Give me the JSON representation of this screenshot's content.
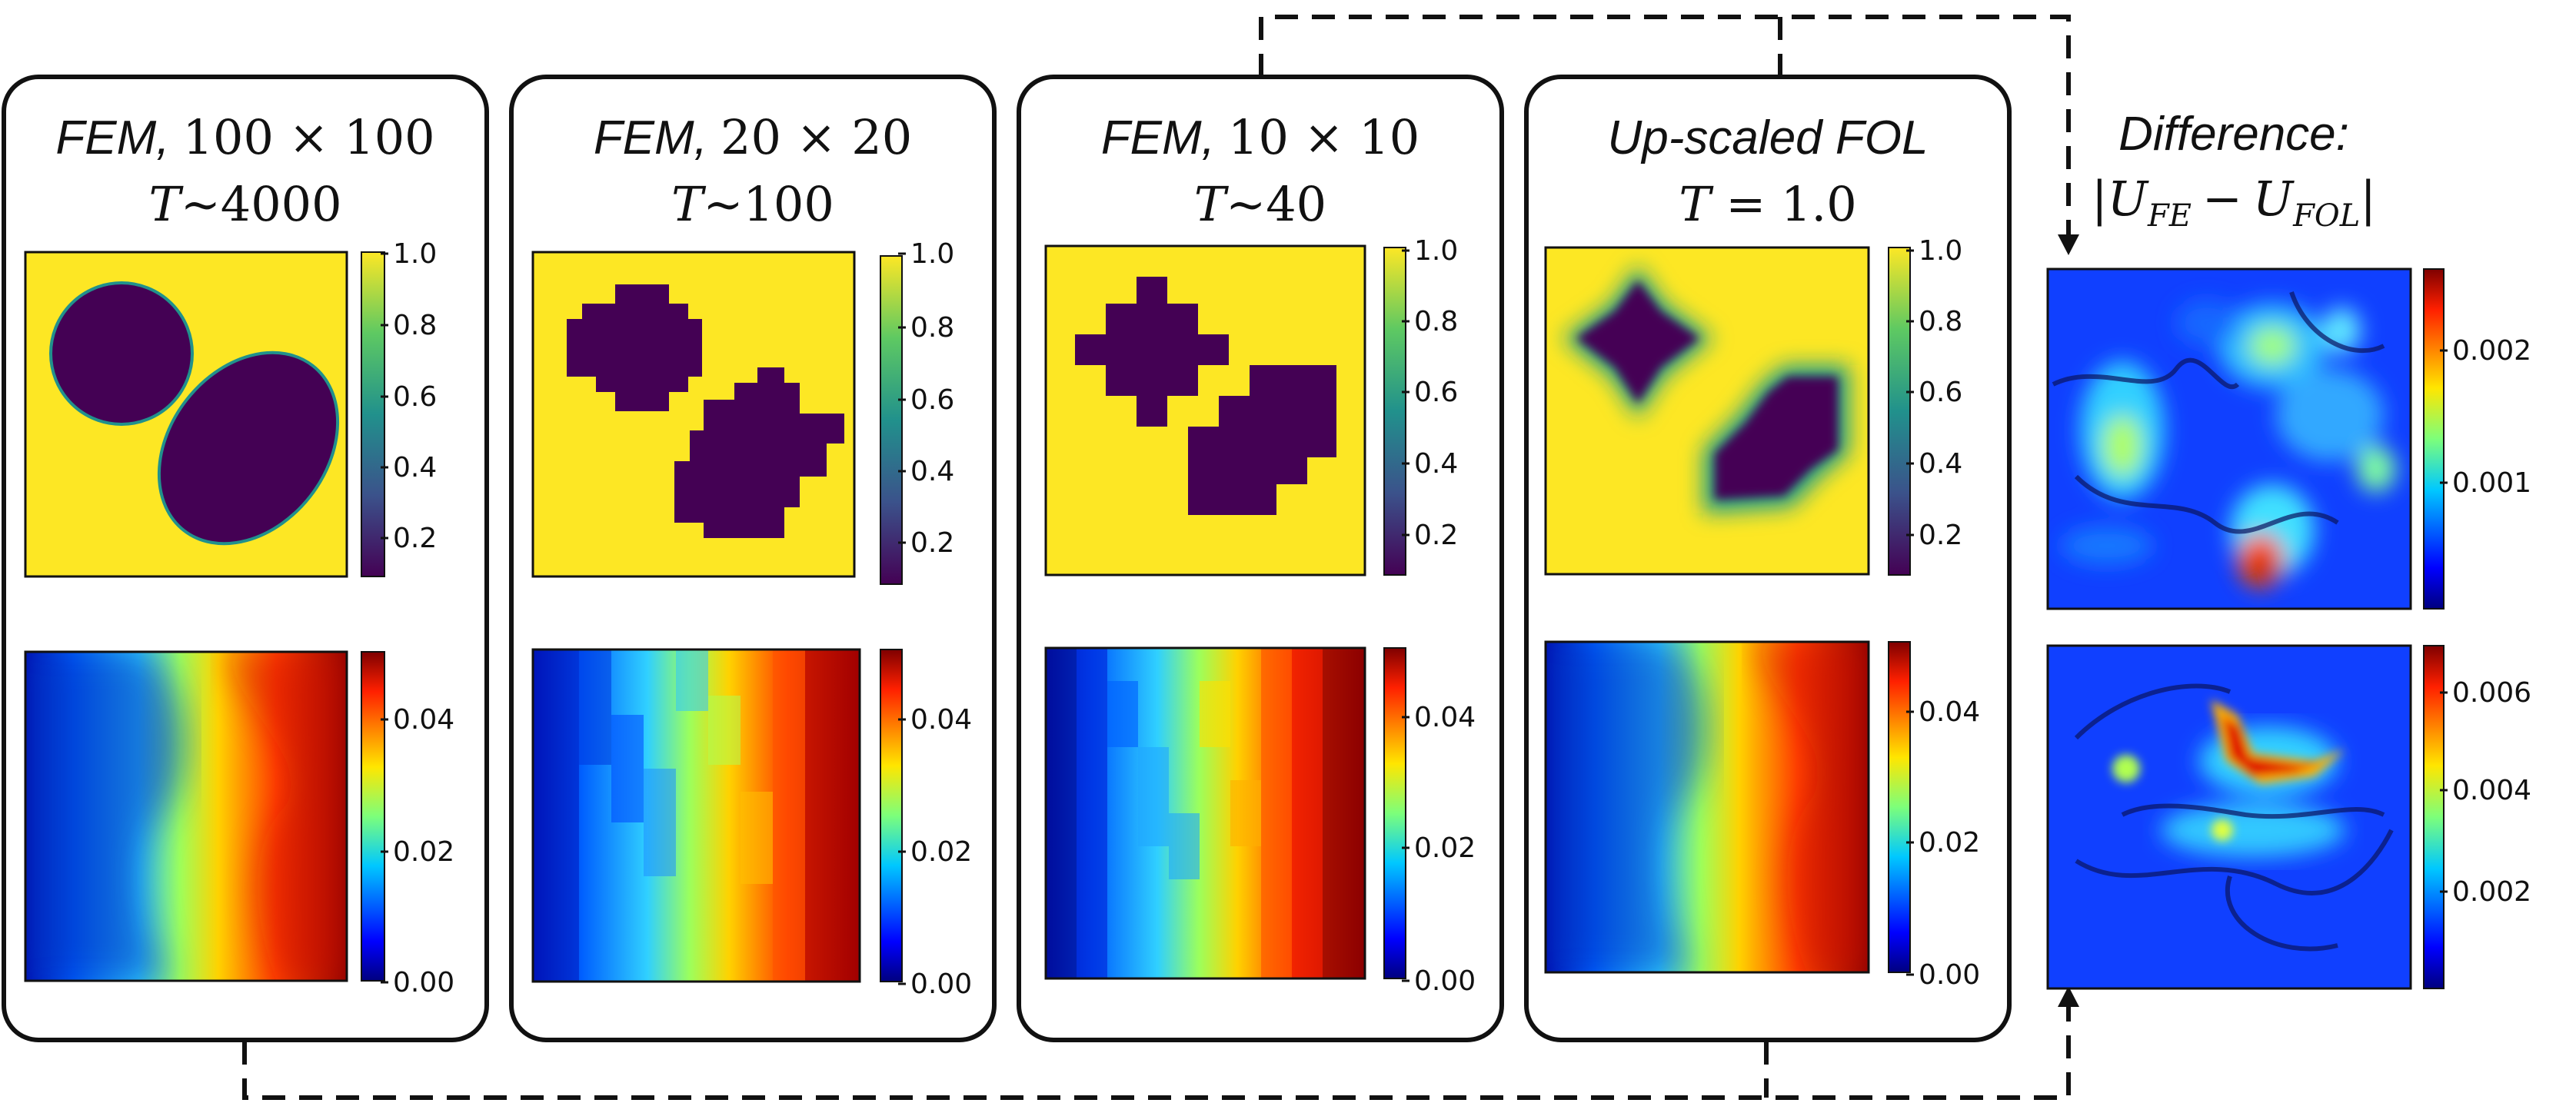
{
  "panels": [
    {
      "title_method": "FEM,",
      "title_grid": "100 × 100",
      "title_time_var": "T",
      "title_time_val": "~4000",
      "top_colorbar_ticks": [
        "1.0",
        "0.8",
        "0.6",
        "0.4",
        "0.2"
      ],
      "bottom_colorbar_ticks": [
        "0.04",
        "0.02",
        "0.00"
      ]
    },
    {
      "title_method": "FEM,",
      "title_grid": "20 × 20",
      "title_time_var": "T",
      "title_time_val": "~100",
      "top_colorbar_ticks": [
        "1.0",
        "0.8",
        "0.6",
        "0.4",
        "0.2"
      ],
      "bottom_colorbar_ticks": [
        "0.04",
        "0.02",
        "0.00"
      ]
    },
    {
      "title_method": "FEM,",
      "title_grid": "10 × 10",
      "title_time_var": "T",
      "title_time_val": "~40",
      "top_colorbar_ticks": [
        "1.0",
        "0.8",
        "0.6",
        "0.4",
        "0.2"
      ],
      "bottom_colorbar_ticks": [
        "0.04",
        "0.02",
        "0.00"
      ]
    },
    {
      "title_method": "Up-scaled FOL",
      "title_grid": "",
      "title_time_var": "T",
      "title_time_val": " = 1.0",
      "top_colorbar_ticks": [
        "1.0",
        "0.8",
        "0.6",
        "0.4",
        "0.2"
      ],
      "bottom_colorbar_ticks": [
        "0.04",
        "0.02",
        "0.00"
      ]
    }
  ],
  "difference": {
    "title": "Difference:",
    "formula_U1": "U",
    "formula_sub1": "FE",
    "formula_minus": "−",
    "formula_U2": "U",
    "formula_sub2": "FOL",
    "top_colorbar_ticks": [
      "0.002",
      "0.001"
    ],
    "bottom_colorbar_ticks": [
      "0.006",
      "0.004",
      "0.002"
    ]
  },
  "colors": {
    "phase_high": "#fde724",
    "phase_low": "#440154",
    "border": "#111111"
  }
}
